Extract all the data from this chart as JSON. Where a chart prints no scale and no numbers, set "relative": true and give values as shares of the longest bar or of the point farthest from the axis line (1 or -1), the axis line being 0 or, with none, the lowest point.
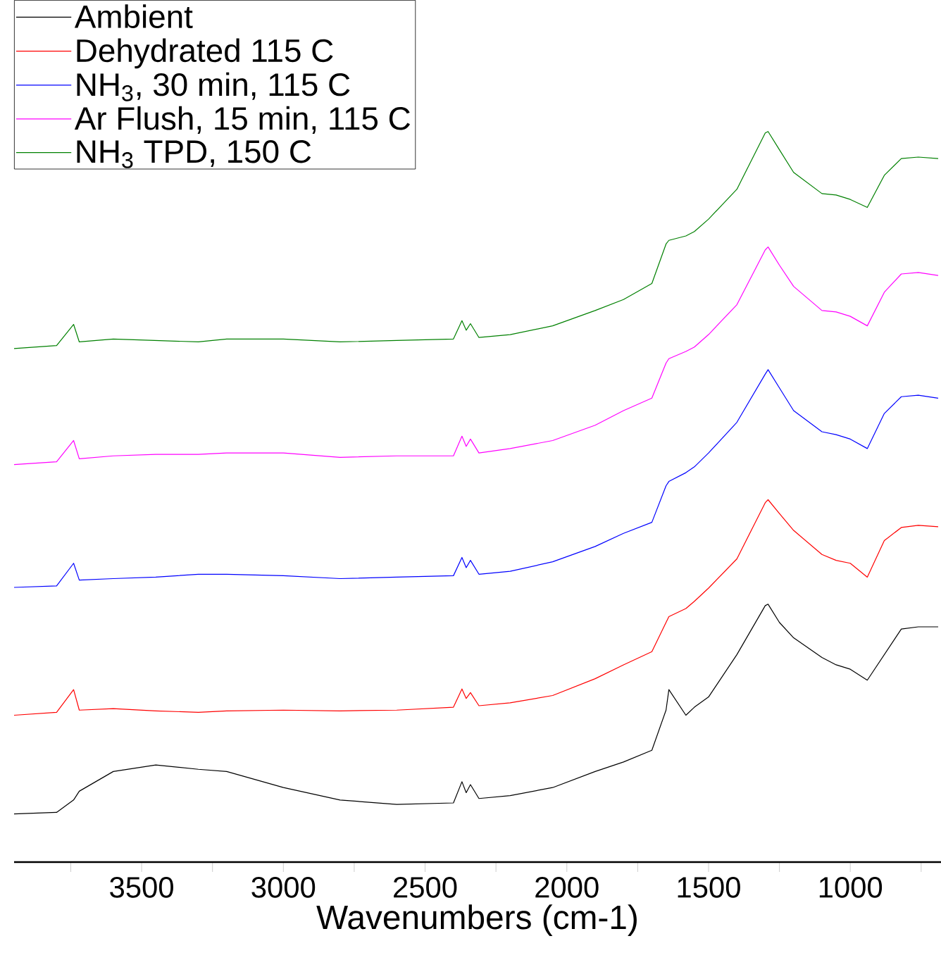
{
  "chart_data": {
    "type": "line",
    "xlabel": "Wavenumbers (cm-1)",
    "relative": true,
    "legend": "top left",
    "xlim": [
      3950,
      680
    ],
    "xticks": [
      {
        "value": 3750,
        "label": null
      },
      3500,
      {
        "value": 3250,
        "label": null
      },
      3000,
      {
        "value": 2750,
        "label": null
      },
      2500,
      {
        "value": 2250,
        "label": null
      },
      2000,
      {
        "value": 1750,
        "label": null
      },
      1500,
      {
        "value": 1250,
        "label": null
      },
      1000,
      {
        "value": 750,
        "label": null
      }
    ],
    "x": [
      3950,
      3800,
      3740,
      3720,
      3600,
      3450,
      3300,
      3200,
      3000,
      2800,
      2600,
      2400,
      2370,
      2355,
      2340,
      2310,
      2200,
      2050,
      1900,
      1800,
      1700,
      1650,
      1640,
      1580,
      1550,
      1500,
      1400,
      1300,
      1290,
      1250,
      1200,
      1100,
      1050,
      1000,
      940,
      880,
      820,
      760,
      690
    ],
    "series": [
      {
        "name": "Ambient",
        "color": "#000000",
        "values": [
          0.066,
          0.068,
          0.085,
          0.097,
          0.124,
          0.133,
          0.127,
          0.124,
          0.102,
          0.085,
          0.079,
          0.081,
          0.11,
          0.095,
          0.106,
          0.087,
          0.091,
          0.102,
          0.124,
          0.137,
          0.153,
          0.208,
          0.236,
          0.201,
          0.212,
          0.226,
          0.284,
          0.351,
          0.353,
          0.328,
          0.307,
          0.28,
          0.27,
          0.264,
          0.249,
          0.284,
          0.319,
          0.322,
          0.322
        ]
      },
      {
        "name": "Dehydrated 115 C",
        "color": "#ff0000",
        "values": [
          0.201,
          0.205,
          0.236,
          0.208,
          0.21,
          0.207,
          0.205,
          0.207,
          0.208,
          0.207,
          0.208,
          0.212,
          0.237,
          0.224,
          0.232,
          0.214,
          0.218,
          0.228,
          0.251,
          0.27,
          0.288,
          0.328,
          0.336,
          0.347,
          0.357,
          0.375,
          0.415,
          0.492,
          0.496,
          0.477,
          0.454,
          0.421,
          0.413,
          0.409,
          0.39,
          0.44,
          0.458,
          0.461,
          0.459
        ]
      },
      {
        "name": "NH$_{3}$, 30 min, 115 C",
        "color": "#0000ff",
        "values": [
          0.376,
          0.378,
          0.409,
          0.386,
          0.388,
          0.39,
          0.394,
          0.394,
          0.392,
          0.388,
          0.39,
          0.392,
          0.417,
          0.403,
          0.413,
          0.394,
          0.398,
          0.411,
          0.432,
          0.45,
          0.465,
          0.515,
          0.521,
          0.533,
          0.541,
          0.56,
          0.602,
          0.668,
          0.674,
          0.649,
          0.618,
          0.589,
          0.585,
          0.579,
          0.566,
          0.614,
          0.637,
          0.639,
          0.635
        ]
      },
      {
        "name": "Ar Flush, 15 min, 115 C",
        "color": "#ff00ff",
        "values": [
          0.544,
          0.548,
          0.577,
          0.552,
          0.556,
          0.558,
          0.558,
          0.56,
          0.56,
          0.554,
          0.556,
          0.556,
          0.583,
          0.569,
          0.579,
          0.56,
          0.566,
          0.577,
          0.598,
          0.618,
          0.635,
          0.683,
          0.689,
          0.699,
          0.705,
          0.722,
          0.763,
          0.838,
          0.842,
          0.817,
          0.788,
          0.755,
          0.753,
          0.747,
          0.734,
          0.78,
          0.805,
          0.807,
          0.803
        ]
      },
      {
        "name": "NH$_{3}$ TPD, 150 C",
        "color": "#008000",
        "values": [
          0.703,
          0.707,
          0.736,
          0.712,
          0.716,
          0.714,
          0.712,
          0.716,
          0.716,
          0.712,
          0.714,
          0.716,
          0.741,
          0.728,
          0.737,
          0.718,
          0.722,
          0.734,
          0.755,
          0.77,
          0.792,
          0.846,
          0.851,
          0.857,
          0.863,
          0.88,
          0.921,
          0.998,
          1,
          0.975,
          0.944,
          0.915,
          0.913,
          0.907,
          0.896,
          0.94,
          0.963,
          0.965,
          0.963
        ]
      }
    ]
  }
}
